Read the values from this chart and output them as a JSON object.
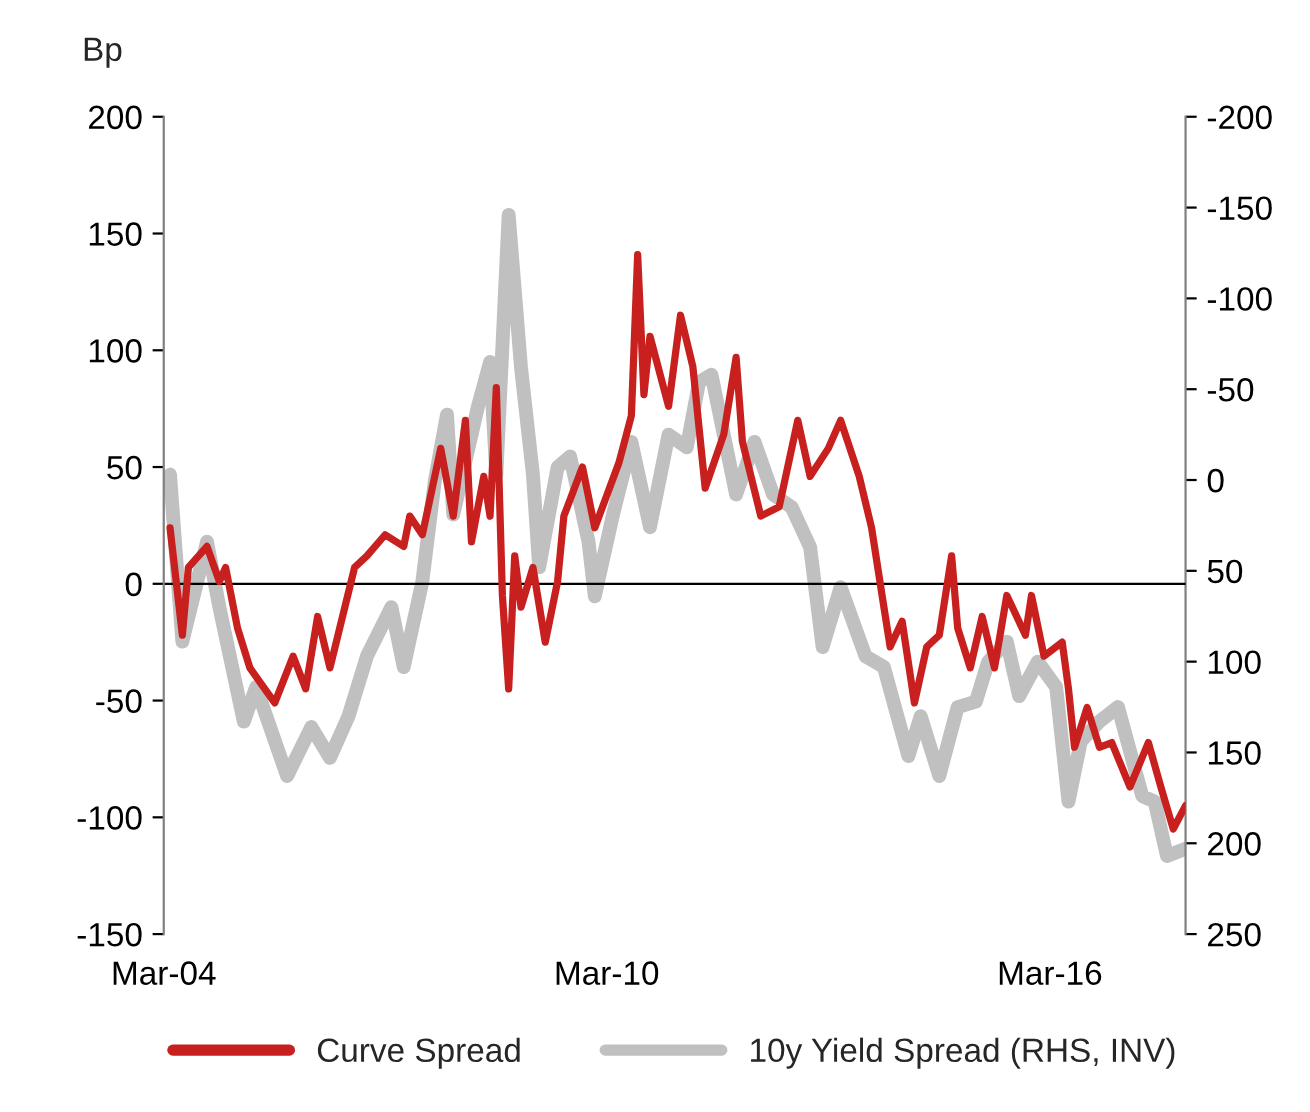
{
  "chart_data": {
    "type": "line",
    "ylabel": "Bp",
    "xlim": [
      "2004-03",
      "2018-01"
    ],
    "xticks": [
      {
        "value": "2004-03",
        "label": "Mar-04"
      },
      {
        "value": "2010-03",
        "label": "Mar-10"
      },
      {
        "value": "2016-03",
        "label": "Mar-16"
      }
    ],
    "ylim": [
      -150,
      200
    ],
    "yticks": [
      -150,
      -100,
      -50,
      0,
      50,
      100,
      150,
      200
    ],
    "y2lim": [
      250,
      -200
    ],
    "y2ticks": [
      250,
      200,
      150,
      100,
      50,
      0,
      -50,
      -100,
      -150,
      -200
    ],
    "ref_lines": [
      {
        "axis": "y",
        "value": 0,
        "color": "#000000"
      }
    ],
    "legend": "bottom",
    "grid": false,
    "series": [
      {
        "name": "Curve Spread",
        "color": "#c8201e",
        "x": [
          "2004-04",
          "2004-06",
          "2004-07",
          "2004-10",
          "2004-12",
          "2005-01",
          "2005-03",
          "2005-05",
          "2005-09",
          "2005-12",
          "2006-02",
          "2006-04",
          "2006-06",
          "2006-10",
          "2006-12",
          "2007-03",
          "2007-06",
          "2007-07",
          "2007-09",
          "2007-12",
          "2008-02",
          "2008-04",
          "2008-05",
          "2008-07",
          "2008-08",
          "2008-09",
          "2008-10",
          "2008-11",
          "2008-12",
          "2009-01",
          "2009-03",
          "2009-05",
          "2009-07",
          "2009-08",
          "2009-11",
          "2010-01",
          "2010-05",
          "2010-07",
          "2010-08",
          "2010-09",
          "2010-10",
          "2011-01",
          "2011-03",
          "2011-05",
          "2011-07",
          "2011-10",
          "2011-12",
          "2012-01",
          "2012-04",
          "2012-07",
          "2012-10",
          "2012-12",
          "2013-03",
          "2013-05",
          "2013-08",
          "2013-10",
          "2013-12",
          "2014-01",
          "2014-03",
          "2014-05",
          "2014-07",
          "2014-09",
          "2014-11",
          "2014-12",
          "2015-02",
          "2015-04",
          "2015-06",
          "2015-08",
          "2015-11",
          "2015-12",
          "2016-02",
          "2016-05",
          "2016-06",
          "2016-07",
          "2016-09",
          "2016-11",
          "2017-01",
          "2017-04",
          "2017-07",
          "2017-09",
          "2017-11",
          "2018-01"
        ],
        "values": [
          24,
          -22,
          7,
          16,
          1,
          7,
          -19,
          -36,
          -51,
          -31,
          -45,
          -14,
          -36,
          7,
          12,
          21,
          16,
          29,
          21,
          58,
          29,
          70,
          18,
          46,
          29,
          84,
          -5,
          -45,
          12,
          -10,
          7,
          -25,
          1,
          29,
          50,
          24,
          52,
          72,
          141,
          81,
          106,
          76,
          115,
          93,
          41,
          64,
          97,
          61,
          29,
          33,
          70,
          46,
          58,
          70,
          46,
          24,
          -10,
          -27,
          -16,
          -51,
          -27,
          -22,
          12,
          -19,
          -36,
          -14,
          -36,
          -5,
          -22,
          -5,
          -31,
          -25,
          -45,
          -70,
          -53,
          -70,
          -68,
          -87,
          -68,
          -87,
          -105,
          -95
        ]
      },
      {
        "name": "10y Yield Spread (RHS, INV)",
        "color": "#c0c0c0",
        "axis": "y2",
        "x": [
          "2004-04",
          "2004-06",
          "2004-10",
          "2004-12",
          "2005-04",
          "2005-06",
          "2005-11",
          "2006-03",
          "2006-06",
          "2006-09",
          "2006-12",
          "2007-04",
          "2007-06",
          "2007-09",
          "2007-11",
          "2008-01",
          "2008-02",
          "2008-06",
          "2008-08",
          "2008-09",
          "2008-11",
          "2009-01",
          "2009-03",
          "2009-04",
          "2009-07",
          "2009-09",
          "2009-12",
          "2010-01",
          "2010-04",
          "2010-07",
          "2010-10",
          "2011-01",
          "2011-04",
          "2011-06",
          "2011-08",
          "2011-12",
          "2012-03",
          "2012-06",
          "2012-09",
          "2012-12",
          "2013-02",
          "2013-05",
          "2013-09",
          "2013-12",
          "2014-04",
          "2014-06",
          "2014-09",
          "2014-12",
          "2015-03",
          "2015-05",
          "2015-08",
          "2015-10",
          "2016-01",
          "2016-04",
          "2016-06",
          "2016-08",
          "2016-11",
          "2017-02",
          "2017-06",
          "2017-08",
          "2017-10",
          "2018-01"
        ],
        "values": [
          -3,
          89,
          34,
          70,
          133,
          114,
          163,
          136,
          153,
          130,
          97,
          70,
          103,
          56,
          1,
          -36,
          19,
          -40,
          -65,
          -3,
          -146,
          -62,
          -3,
          48,
          -7,
          -13,
          34,
          64,
          19,
          -21,
          26,
          -25,
          -18,
          -54,
          -58,
          8,
          -21,
          8,
          15,
          37,
          92,
          59,
          97,
          103,
          152,
          130,
          163,
          125,
          122,
          100,
          89,
          119,
          100,
          114,
          177,
          144,
          133,
          125,
          174,
          177,
          207,
          203
        ]
      }
    ]
  }
}
